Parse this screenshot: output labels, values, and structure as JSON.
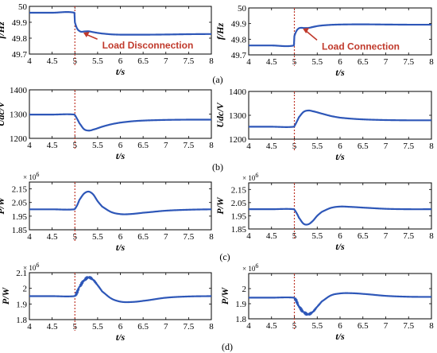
{
  "panel_labels": [
    "(a)",
    "(b)",
    "(c)",
    "(d)"
  ],
  "colors": {
    "trace": "#2e57b8",
    "event_line": "#c0392b",
    "annotation": "#c0392b",
    "axis": "#000000"
  },
  "chart_data": [
    {
      "type": "line",
      "id": "a-left",
      "ylabel": "f/Hz",
      "xlabel": "t/s",
      "xlim": [
        4,
        8
      ],
      "ylim": [
        49.7,
        50
      ],
      "xticks": [
        "4",
        "4.5",
        "5",
        "5.5",
        "6",
        "6.5",
        "7",
        "7.5",
        "8"
      ],
      "yticks": [
        "49.7",
        "49.8",
        "49.9",
        "50"
      ],
      "annotation": "Load Disconnection",
      "event_x": 5,
      "series": [
        {
          "x": [
            4,
            4.5,
            4.99,
            5.0,
            5.05,
            5.1,
            5.15,
            5.2,
            5.3,
            5.4,
            5.5,
            5.6,
            5.8,
            6.0,
            6.3,
            6.6,
            7.0,
            7.5,
            8
          ],
          "y": [
            49.96,
            49.96,
            49.96,
            49.9,
            49.86,
            49.845,
            49.84,
            49.842,
            49.843,
            49.838,
            49.833,
            49.829,
            49.824,
            49.822,
            49.822,
            49.822,
            49.823,
            49.825,
            49.826
          ]
        }
      ]
    },
    {
      "type": "line",
      "id": "a-right",
      "ylabel": "f/Hz",
      "xlabel": "t/s",
      "xlim": [
        4,
        8
      ],
      "ylim": [
        49.7,
        50
      ],
      "xticks": [
        "4",
        "4.5",
        "5",
        "5.5",
        "6",
        "6.5",
        "7",
        "7.5",
        "8"
      ],
      "yticks": [
        "49.7",
        "49.8",
        "49.9",
        "50"
      ],
      "annotation": "Load Connection",
      "event_x": 5,
      "series": [
        {
          "x": [
            4,
            4.5,
            4.99,
            5.0,
            5.05,
            5.1,
            5.15,
            5.2,
            5.3,
            5.4,
            5.5,
            5.6,
            5.8,
            6.0,
            6.3,
            6.6,
            7.0,
            7.5,
            8
          ],
          "y": [
            49.76,
            49.76,
            49.76,
            49.82,
            49.855,
            49.87,
            49.873,
            49.872,
            49.872,
            49.878,
            49.884,
            49.888,
            49.892,
            49.894,
            49.895,
            49.895,
            49.894,
            49.893,
            49.893
          ]
        }
      ]
    },
    {
      "type": "line",
      "id": "b-left",
      "ylabel": "Udc/V",
      "xlabel": "t/s",
      "xlim": [
        4,
        8
      ],
      "ylim": [
        1200,
        1400
      ],
      "xticks": [
        "4",
        "4.5",
        "5",
        "5.5",
        "6",
        "6.5",
        "7",
        "7.5",
        "8"
      ],
      "yticks": [
        "1200",
        "1300",
        "1400"
      ],
      "event_x": 5,
      "series": [
        {
          "x": [
            4,
            4.5,
            4.99,
            5.05,
            5.1,
            5.2,
            5.3,
            5.4,
            5.6,
            5.8,
            6.0,
            6.3,
            6.6,
            7.0,
            7.5,
            8
          ],
          "y": [
            1298,
            1298,
            1298,
            1280,
            1262,
            1238,
            1232,
            1236,
            1248,
            1258,
            1265,
            1271,
            1274,
            1276,
            1277,
            1277
          ]
        }
      ]
    },
    {
      "type": "line",
      "id": "b-right",
      "ylabel": "Udc/V",
      "xlabel": "t/s",
      "xlim": [
        4,
        8
      ],
      "ylim": [
        1200,
        1400
      ],
      "xticks": [
        "4",
        "4.5",
        "5",
        "5.5",
        "6",
        "6.5",
        "7",
        "7.5",
        "8"
      ],
      "yticks": [
        "1200",
        "1300",
        "1400"
      ],
      "event_x": 5,
      "series": [
        {
          "x": [
            4,
            4.5,
            4.99,
            5.05,
            5.1,
            5.2,
            5.3,
            5.4,
            5.6,
            5.8,
            6.0,
            6.3,
            6.6,
            7.0,
            7.5,
            8
          ],
          "y": [
            1252,
            1252,
            1252,
            1272,
            1292,
            1314,
            1320,
            1317,
            1307,
            1297,
            1290,
            1285,
            1282,
            1280,
            1279,
            1279
          ]
        }
      ]
    },
    {
      "type": "line",
      "id": "c-left",
      "ylabel": "P/W",
      "xlabel": "t/s",
      "multiplier": "× 10",
      "multiplier_exp": "6",
      "xlim": [
        4,
        8
      ],
      "ylim": [
        1.85,
        2.2
      ],
      "xticks": [
        "4",
        "4.5",
        "5",
        "5.5",
        "6",
        "6.5",
        "7",
        "7.5",
        "8"
      ],
      "yticks": [
        "1.85",
        "1.95",
        "2.05",
        "2.15"
      ],
      "event_x": 5,
      "series": [
        {
          "x": [
            4,
            4.5,
            4.99,
            5.05,
            5.1,
            5.2,
            5.3,
            5.4,
            5.5,
            5.6,
            5.8,
            6.0,
            6.2,
            6.5,
            7.0,
            7.5,
            8
          ],
          "y": [
            2.0,
            2.0,
            2.0,
            2.03,
            2.07,
            2.115,
            2.13,
            2.11,
            2.06,
            2.02,
            1.98,
            1.965,
            1.965,
            1.975,
            1.99,
            1.997,
            2.0
          ]
        }
      ]
    },
    {
      "type": "line",
      "id": "c-right",
      "ylabel": "P/W",
      "xlabel": "t/s",
      "multiplier": "× 10",
      "multiplier_exp": "6",
      "xlim": [
        4,
        8
      ],
      "ylim": [
        1.85,
        2.2
      ],
      "xticks": [
        "4",
        "4.5",
        "5",
        "5.5",
        "6",
        "6.5",
        "7",
        "7.5",
        "8"
      ],
      "yticks": [
        "1.85",
        "1.95",
        "2.05",
        "2.15"
      ],
      "event_x": 5,
      "series": [
        {
          "x": [
            4,
            4.5,
            4.99,
            5.05,
            5.1,
            5.2,
            5.3,
            5.4,
            5.5,
            5.6,
            5.8,
            6.0,
            6.2,
            6.5,
            7.0,
            7.5,
            8
          ],
          "y": [
            2.0,
            2.0,
            2.0,
            1.97,
            1.935,
            1.89,
            1.885,
            1.91,
            1.95,
            1.98,
            2.01,
            2.02,
            2.018,
            2.012,
            2.003,
            2.0,
            2.0
          ]
        }
      ]
    },
    {
      "type": "line",
      "id": "d-left",
      "ylabel": "P/W",
      "xlabel": "t/s",
      "multiplier": "× 10",
      "multiplier_exp": "6",
      "xlim": [
        4,
        8
      ],
      "ylim": [
        1.8,
        2.1
      ],
      "xticks": [
        "4",
        "4.5",
        "5",
        "5.5",
        "6",
        "6.5",
        "7",
        "7.5",
        "8"
      ],
      "yticks": [
        "1.8",
        "1.9",
        "2",
        "2.1"
      ],
      "event_x": 5,
      "ripple": 0.012,
      "series": [
        {
          "x": [
            4,
            4.5,
            4.99,
            5.05,
            5.1,
            5.2,
            5.3,
            5.4,
            5.5,
            5.6,
            5.8,
            6.0,
            6.2,
            6.5,
            7.0,
            7.5,
            8
          ],
          "y": [
            1.95,
            1.95,
            1.95,
            1.975,
            2.01,
            2.05,
            2.07,
            2.055,
            2.02,
            1.98,
            1.935,
            1.915,
            1.912,
            1.92,
            1.94,
            1.948,
            1.95
          ]
        }
      ]
    },
    {
      "type": "line",
      "id": "d-right",
      "ylabel": "P/W",
      "xlabel": "t/s",
      "multiplier": "× 10",
      "multiplier_exp": "6",
      "xlim": [
        4,
        8
      ],
      "ylim": [
        1.8,
        2.1
      ],
      "xticks": [
        "4",
        "4.5",
        "5",
        "5.5",
        "6",
        "6.5",
        "7",
        "7.5",
        "8"
      ],
      "yticks": [
        "1.8",
        "1.9",
        "2"
      ],
      "event_x": 5,
      "ripple": 0.012,
      "series": [
        {
          "x": [
            4,
            4.5,
            4.99,
            5.05,
            5.1,
            5.2,
            5.3,
            5.4,
            5.5,
            5.6,
            5.8,
            6.0,
            6.2,
            6.5,
            7.0,
            7.5,
            8
          ],
          "y": [
            1.94,
            1.94,
            1.94,
            1.915,
            1.88,
            1.845,
            1.83,
            1.845,
            1.88,
            1.915,
            1.955,
            1.968,
            1.97,
            1.965,
            1.952,
            1.946,
            1.945
          ]
        }
      ]
    }
  ]
}
